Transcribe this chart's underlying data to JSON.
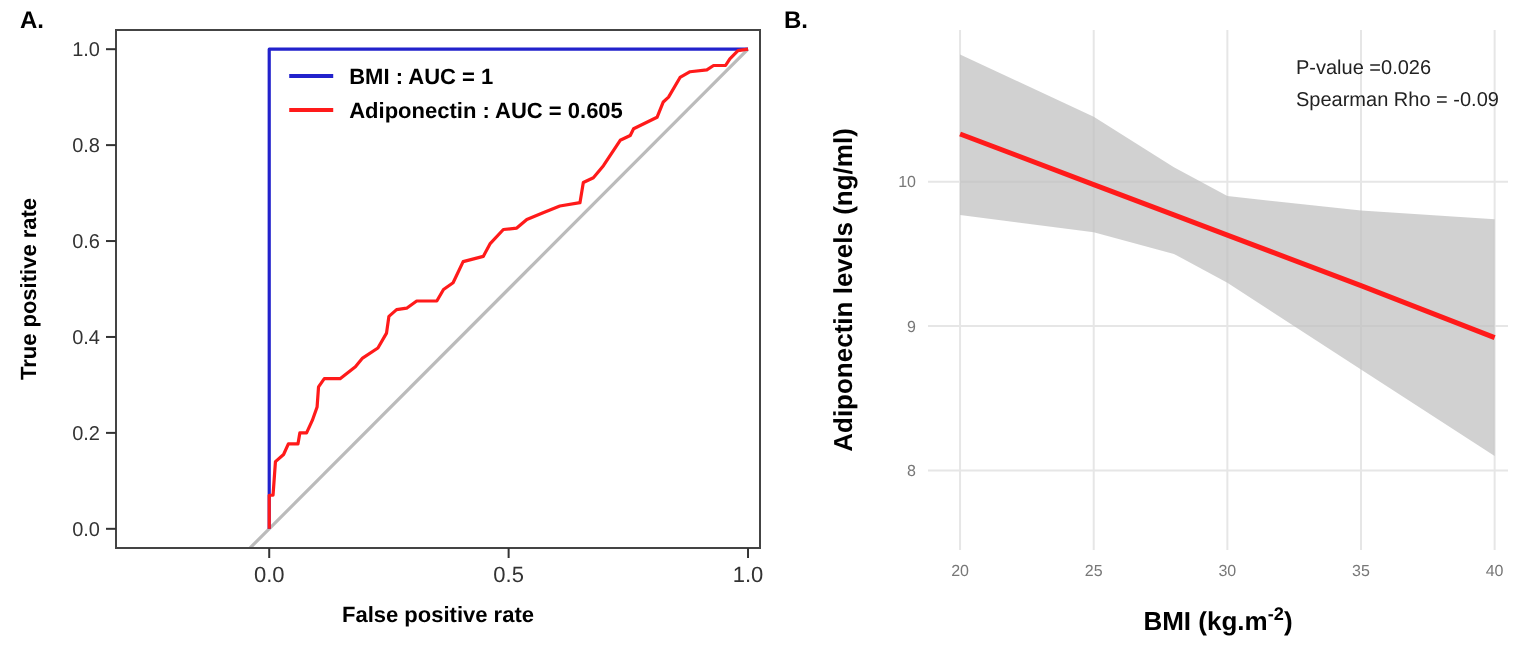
{
  "chart_data": [
    {
      "type": "line",
      "title": "A.",
      "xlabel": "False positive rate",
      "ylabel": "True positive rate",
      "xlim": [
        -0.32,
        1.025
      ],
      "ylim": [
        -0.04,
        1.04
      ],
      "xticks": [
        {
          "value": 0,
          "label": "0.0"
        },
        0.5,
        {
          "value": 1,
          "label": "1.0"
        }
      ],
      "yticks": [
        {
          "value": 0,
          "label": "0.0"
        },
        0.2,
        0.4,
        0.6,
        0.8,
        {
          "value": 1,
          "label": "1.0"
        }
      ],
      "grid": false,
      "legend": "top",
      "series": [
        {
          "color": "#bbbbbb",
          "x": [
            -0.04,
            1
          ],
          "values": [
            -0.04,
            1
          ]
        },
        {
          "name": "BMI : AUC = 1",
          "color": "#2222cc",
          "x": [
            0,
            0,
            1
          ],
          "values": [
            0,
            1,
            1
          ]
        },
        {
          "name": "Adiponectin : AUC = 0.605",
          "color": "#ff1a1a",
          "x": [
            0,
            0,
            0.008,
            0.013,
            0.03,
            0.04,
            0.06,
            0.064,
            0.078,
            0.09,
            0.1,
            0.103,
            0.115,
            0.148,
            0.18,
            0.195,
            0.227,
            0.245,
            0.25,
            0.266,
            0.287,
            0.308,
            0.35,
            0.364,
            0.384,
            0.405,
            0.447,
            0.461,
            0.489,
            0.517,
            0.538,
            0.572,
            0.607,
            0.649,
            0.656,
            0.677,
            0.698,
            0.733,
            0.754,
            0.761,
            0.81,
            0.823,
            0.834,
            0.858,
            0.879,
            0.914,
            0.928,
            0.953,
            0.962,
            0.979,
            1
          ],
          "values": [
            0,
            0.07,
            0.07,
            0.14,
            0.155,
            0.177,
            0.177,
            0.2,
            0.2,
            0.226,
            0.254,
            0.296,
            0.313,
            0.313,
            0.338,
            0.356,
            0.377,
            0.408,
            0.443,
            0.457,
            0.46,
            0.475,
            0.475,
            0.499,
            0.513,
            0.557,
            0.568,
            0.594,
            0.624,
            0.627,
            0.645,
            0.659,
            0.673,
            0.68,
            0.722,
            0.732,
            0.757,
            0.81,
            0.82,
            0.834,
            0.858,
            0.89,
            0.9,
            0.941,
            0.953,
            0.957,
            0.966,
            0.966,
            0.98,
            0.997,
            1
          ]
        }
      ]
    },
    {
      "type": "line",
      "title": "B.",
      "xlabel": "BMI (kg.m$^{-2}$)",
      "ylabel": "Adiponectin levels (ng/ml)",
      "xlim": [
        18.8,
        40.5
      ],
      "ylim": [
        7.45,
        11.05
      ],
      "xticks": [
        20,
        25,
        30,
        35,
        40
      ],
      "yticks": [
        8,
        9,
        10
      ],
      "grid": true,
      "annotations": [
        "P-value =0.026",
        "Spearman Rho = -0.09"
      ],
      "series": [
        {
          "color": "#ff1a1a",
          "x": [
            20,
            25,
            28,
            30,
            35,
            40
          ],
          "values": [
            10.33,
            9.98,
            9.77,
            9.63,
            9.28,
            8.92
          ],
          "lower": [
            9.77,
            9.65,
            9.5,
            9.3,
            8.7,
            8.1
          ],
          "upper": [
            10.88,
            10.45,
            10.1,
            9.9,
            9.8,
            9.74
          ]
        }
      ]
    }
  ]
}
